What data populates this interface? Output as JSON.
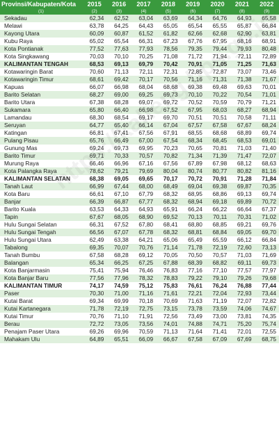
{
  "watermark": "https://kalteng.bps.go.id",
  "header": {
    "columns": [
      "Provinsi/Kabupaten/Kota",
      "2015",
      "2016",
      "2017",
      "2018",
      "2019",
      "2020",
      "2021",
      "2022"
    ],
    "numbers": [
      "(1)",
      "(2)",
      "(3)",
      "(4)",
      "(5)",
      "(6)",
      "(7)",
      "(8)",
      "(9)"
    ]
  },
  "rows": [
    {
      "name": "Sekadau",
      "values": [
        "62,34",
        "62,52",
        "63,04",
        "63,69",
        "64,34",
        "64,76",
        "64,93",
        "65,58"
      ]
    },
    {
      "name": "Melawi",
      "values": [
        "63,78",
        "64,25",
        "64,43",
        "65,05",
        "65,54",
        "65,55",
        "65,87",
        "66,84"
      ]
    },
    {
      "name": "Kayong Utara",
      "values": [
        "60,09",
        "60,87",
        "61,52",
        "61,82",
        "62,66",
        "62,68",
        "62,90",
        "63,81"
      ]
    },
    {
      "name": "Kubu Raya",
      "values": [
        "65,02",
        "65,54",
        "66,31",
        "67,23",
        "67,76",
        "67,95",
        "68,16",
        "68,91"
      ]
    },
    {
      "name": "Kota Pontianak",
      "values": [
        "77,52",
        "77,63",
        "77,93",
        "78,56",
        "79,35",
        "79,44",
        "79,93",
        "80,48"
      ]
    },
    {
      "name": "Kota Singkawang",
      "values": [
        "70,03",
        "70,10",
        "70,25",
        "71,08",
        "71,72",
        "71,94",
        "72,11",
        "72,89"
      ]
    },
    {
      "name": "KALIMANTAN TENGAH",
      "group": true,
      "values": [
        "68,53",
        "69,13",
        "69,79",
        "70,42",
        "70,91",
        "71,05",
        "71,25",
        "71,63"
      ]
    },
    {
      "name": "Kotawaringin Barat",
      "values": [
        "70,60",
        "71,13",
        "72,11",
        "72,31",
        "72,85",
        "72,87",
        "73,07",
        "73,46"
      ]
    },
    {
      "name": "Kotawaringin Timur",
      "values": [
        "68,61",
        "69,42",
        "70,17",
        "70,56",
        "71,16",
        "71,31",
        "71,38",
        "71,67"
      ]
    },
    {
      "name": "Kapuas",
      "values": [
        "66,07",
        "66,98",
        "68,04",
        "68,68",
        "69,38",
        "69,48",
        "69,63",
        "70,01"
      ]
    },
    {
      "name": "Barito Selatan",
      "values": [
        "68,27",
        "69,00",
        "69,25",
        "69,73",
        "70,10",
        "70,22",
        "70,54",
        "71,01"
      ]
    },
    {
      "name": "Barito Utara",
      "values": [
        "67,38",
        "68,28",
        "69,07",
        "69,72",
        "70,52",
        "70,59",
        "70,79",
        "71,21"
      ]
    },
    {
      "name": "Sukamara",
      "values": [
        "65,80",
        "66,40",
        "66,98",
        "67,52",
        "67,95",
        "68,03",
        "68,27",
        "68,94"
      ]
    },
    {
      "name": "Lamandau",
      "values": [
        "68,30",
        "68,54",
        "69,17",
        "69,70",
        "70,51",
        "70,51",
        "70,58",
        "71,11"
      ]
    },
    {
      "name": "Seruyan",
      "values": [
        "64,77",
        "65,40",
        "66,14",
        "67,04",
        "67,57",
        "67,58",
        "67,67",
        "68,24"
      ]
    },
    {
      "name": "Katingan",
      "values": [
        "66,81",
        "67,41",
        "67,56",
        "67,91",
        "68,55",
        "68,68",
        "68,89",
        "69,74"
      ]
    },
    {
      "name": "Pulang Pisau",
      "values": [
        "65,76",
        "66,49",
        "67,00",
        "67,54",
        "68,34",
        "68,45",
        "68,53",
        "69,01"
      ]
    },
    {
      "name": "Gunung Mas",
      "values": [
        "69,24",
        "69,73",
        "69,95",
        "70,23",
        "70,65",
        "70,81",
        "71,03",
        "71,40"
      ]
    },
    {
      "name": "Barito Timur",
      "values": [
        "69,71",
        "70,33",
        "70,57",
        "70,82",
        "71,34",
        "71,39",
        "71,47",
        "72,07"
      ]
    },
    {
      "name": "Murung Raya",
      "values": [
        "66,46",
        "66,96",
        "67,16",
        "67,56",
        "67,89",
        "67,98",
        "68,12",
        "68,63"
      ]
    },
    {
      "name": "Kota Palangka Raya",
      "values": [
        "78,62",
        "79,21",
        "79,69",
        "80,04",
        "80,74",
        "80,77",
        "80,82",
        "81,16"
      ]
    },
    {
      "name": "KALIMANTAN SELATAN",
      "group": true,
      "values": [
        "68,38",
        "69,05",
        "69,65",
        "70,17",
        "70,72",
        "70,91",
        "71,28",
        "71,84"
      ]
    },
    {
      "name": "Tanah Laut",
      "values": [
        "66,99",
        "67,44",
        "68,00",
        "68,49",
        "69,04",
        "69,38",
        "69,87",
        "70,35"
      ]
    },
    {
      "name": "Kota Baru",
      "values": [
        "66,61",
        "67,10",
        "67,79",
        "68,32",
        "68,95",
        "68,86",
        "69,13",
        "69,74"
      ]
    },
    {
      "name": "Banjar",
      "values": [
        "66,39",
        "66,87",
        "67,77",
        "68,32",
        "68,94",
        "69,18",
        "69,89",
        "70,72"
      ]
    },
    {
      "name": "Barito Kuala",
      "values": [
        "63,53",
        "64,33",
        "64,93",
        "65,91",
        "66,24",
        "66,22",
        "66,64",
        "67,37"
      ]
    },
    {
      "name": "Tapin",
      "values": [
        "67,67",
        "68,05",
        "68,90",
        "69,52",
        "70,13",
        "70,11",
        "70,31",
        "71,02"
      ]
    },
    {
      "name": "Hulu Sungai Selatan",
      "values": [
        "66,31",
        "67,52",
        "67,80",
        "68,41",
        "68,80",
        "68,85",
        "69,21",
        "69,76"
      ]
    },
    {
      "name": "Hulu Sungai Tengah",
      "values": [
        "66,56",
        "67,07",
        "67,78",
        "68,32",
        "68,81",
        "68,84",
        "69,05",
        "69,70"
      ]
    },
    {
      "name": "Hulu Sungai Utara",
      "values": [
        "62,49",
        "63,38",
        "64,21",
        "65,06",
        "65,49",
        "65,59",
        "66,12",
        "66,84"
      ]
    },
    {
      "name": "Tabalong",
      "values": [
        "69,35",
        "70,07",
        "70,76",
        "71,14",
        "71,78",
        "72,19",
        "72,60",
        "73,13"
      ]
    },
    {
      "name": "Tanah Bumbu",
      "values": [
        "67,58",
        "68,28",
        "69,12",
        "70,05",
        "70,50",
        "70,57",
        "71,03",
        "71,69"
      ]
    },
    {
      "name": "Balangan",
      "values": [
        "65,34",
        "66,25",
        "67,25",
        "67,88",
        "68,39",
        "68,82",
        "69,11",
        "69,73"
      ]
    },
    {
      "name": "Kota Banjarmasin",
      "values": [
        "75,41",
        "75,94",
        "76,46",
        "76,83",
        "77,16",
        "77,10",
        "77,57",
        "77,97"
      ]
    },
    {
      "name": "Kota Banjar Baru",
      "values": [
        "77,56",
        "77,96",
        "78,32",
        "78,83",
        "79,22",
        "79,10",
        "79,26",
        "79,68"
      ]
    },
    {
      "name": "KALIMANTAN TIMUR",
      "group": true,
      "values": [
        "74,17",
        "74,59",
        "75,12",
        "75,83",
        "76,61",
        "76,24",
        "76,88",
        "77,44"
      ]
    },
    {
      "name": "Paser",
      "values": [
        "70,30",
        "71,00",
        "71,16",
        "71,61",
        "72,21",
        "72,04",
        "72,93",
        "73,44"
      ]
    },
    {
      "name": "Kutai Barat",
      "values": [
        "69,34",
        "69,99",
        "70,18",
        "70,69",
        "71,63",
        "71,19",
        "72,07",
        "72,82"
      ]
    },
    {
      "name": "Kutai Kartanegara",
      "values": [
        "71,78",
        "72,19",
        "72,75",
        "73,15",
        "73,78",
        "73,59",
        "74,06",
        "74,67"
      ]
    },
    {
      "name": "Kutai Timur",
      "values": [
        "70,76",
        "71,10",
        "71,91",
        "72,56",
        "73,49",
        "73,00",
        "73,81",
        "74,35"
      ]
    },
    {
      "name": "Berau",
      "values": [
        "72,72",
        "73,05",
        "73,56",
        "74,01",
        "74,88",
        "74,71",
        "75,20",
        "75,74"
      ]
    },
    {
      "name": "Penajam Paser Utara",
      "values": [
        "69,26",
        "69,96",
        "70,59",
        "71,13",
        "71,64",
        "71,41",
        "72,01",
        "72,55"
      ]
    },
    {
      "name": "Mahakam Ulu",
      "values": [
        "64,89",
        "65,51",
        "66,09",
        "66,67",
        "67,58",
        "67,09",
        "67,69",
        "68,75"
      ]
    }
  ]
}
